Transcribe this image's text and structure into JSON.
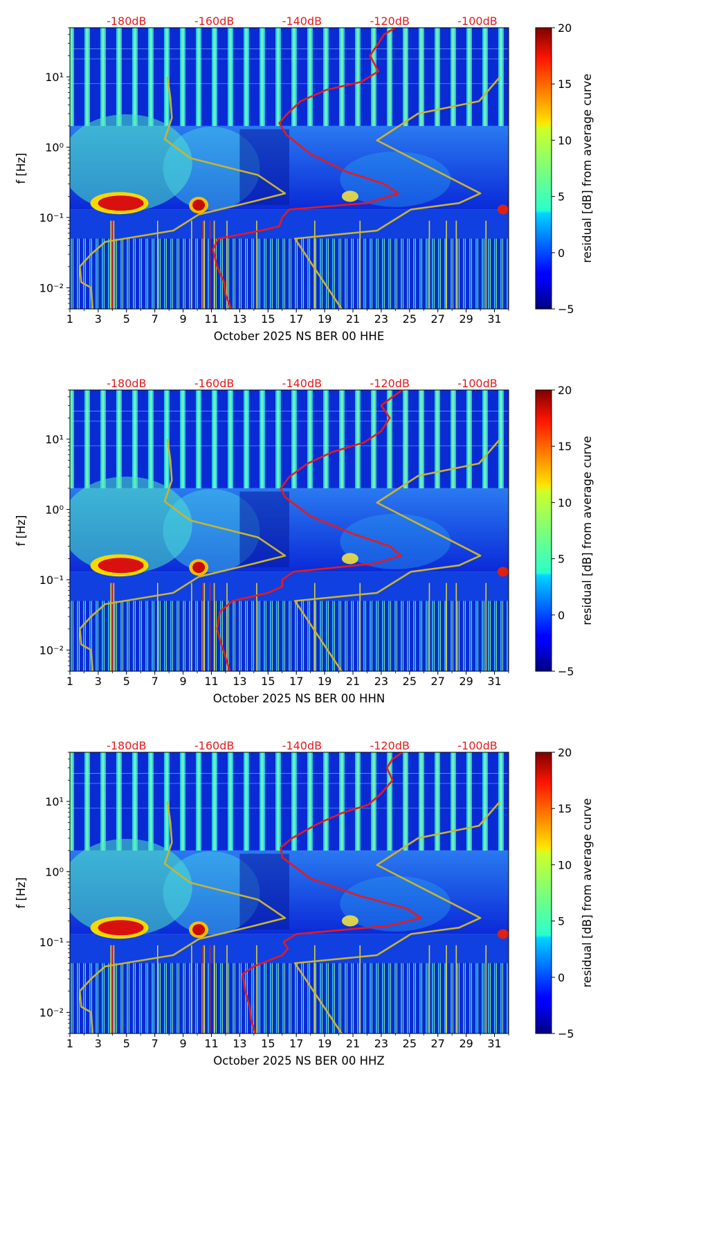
{
  "chart_data": [
    {
      "type": "heatmap",
      "title": "October 2025 NS BER 00 HHE",
      "xlabel": "October 2025 NS BER 00 HHE",
      "ylabel": "f [Hz]",
      "x_ticks": [
        1,
        3,
        5,
        7,
        9,
        11,
        13,
        15,
        17,
        19,
        21,
        23,
        25,
        27,
        29,
        31
      ],
      "x_range": [
        1,
        32
      ],
      "y_scale": "log",
      "y_range": [
        0.005,
        50
      ],
      "y_tick_labels": [
        "10⁻²",
        "10⁻¹",
        "10⁰",
        "10¹"
      ],
      "y_ticks": [
        0.01,
        0.1,
        1,
        10
      ],
      "db_scale": {
        "labels": [
          "-180dB",
          "-160dB",
          "-140dB",
          "-120dB",
          "-100dB"
        ],
        "positions": [
          5,
          11.2,
          17.4,
          23.6,
          29.8
        ]
      },
      "colorbar": {
        "label": "residual [dB] from average curve",
        "range": [
          -5,
          20
        ],
        "ticks": [
          -5,
          0,
          5,
          10,
          15,
          20
        ],
        "tick_labels": [
          "−5",
          "0",
          "5",
          "10",
          "15",
          "20"
        ]
      },
      "series": [
        {
          "name": "noise model (low/high)",
          "color": "#c8b434",
          "points": [
            [
              2.6,
              0.005
            ],
            [
              2.5,
              0.01
            ],
            [
              1.8,
              0.012
            ],
            [
              1.7,
              0.02
            ],
            [
              2.5,
              0.03
            ],
            [
              3.5,
              0.045
            ],
            [
              8.3,
              0.065
            ],
            [
              10.1,
              0.11
            ],
            [
              14.0,
              0.17
            ],
            [
              16.2,
              0.22
            ],
            [
              14.3,
              0.4
            ],
            [
              9.5,
              0.7
            ],
            [
              7.7,
              1.3
            ],
            [
              8.2,
              2.6
            ],
            [
              8.1,
              5.0
            ],
            [
              7.9,
              10.0
            ]
          ]
        },
        {
          "name": "noise model (high)",
          "color": "#c8b434",
          "points": [
            [
              20.2,
              0.005
            ],
            [
              16.9,
              0.05
            ],
            [
              22.7,
              0.065
            ],
            [
              25.1,
              0.13
            ],
            [
              28.5,
              0.16
            ],
            [
              30.0,
              0.22
            ],
            [
              22.7,
              1.25
            ],
            [
              25.6,
              3.0
            ],
            [
              29.9,
              4.5
            ],
            [
              31.4,
              10.0
            ]
          ]
        },
        {
          "name": "average PSD",
          "color": "#e8191c",
          "points": [
            [
              12.4,
              0.005
            ],
            [
              12.0,
              0.008
            ],
            [
              11.9,
              0.012
            ],
            [
              11.4,
              0.02
            ],
            [
              11.1,
              0.035
            ],
            [
              11.5,
              0.05
            ],
            [
              14.5,
              0.065
            ],
            [
              15.8,
              0.075
            ],
            [
              16.0,
              0.1
            ],
            [
              16.5,
              0.13
            ],
            [
              22.0,
              0.16
            ],
            [
              24.2,
              0.22
            ],
            [
              23.2,
              0.3
            ],
            [
              20.5,
              0.45
            ],
            [
              18.0,
              0.8
            ],
            [
              16.3,
              1.5
            ],
            [
              15.8,
              2.2
            ],
            [
              16.3,
              2.9
            ],
            [
              17.3,
              4.5
            ],
            [
              19.1,
              6.5
            ],
            [
              21.6,
              8.5
            ],
            [
              22.8,
              12.0
            ],
            [
              22.2,
              20.0
            ],
            [
              22.8,
              30.0
            ],
            [
              23.2,
              40.0
            ],
            [
              24.0,
              50.0
            ]
          ]
        }
      ]
    },
    {
      "type": "heatmap",
      "title": "October 2025 NS BER 00 HHN",
      "xlabel": "October 2025 NS BER 00 HHN",
      "ylabel": "f [Hz]",
      "x_ticks": [
        1,
        3,
        5,
        7,
        9,
        11,
        13,
        15,
        17,
        19,
        21,
        23,
        25,
        27,
        29,
        31
      ],
      "x_range": [
        1,
        32
      ],
      "y_scale": "log",
      "y_range": [
        0.005,
        50
      ],
      "y_tick_labels": [
        "10⁻²",
        "10⁻¹",
        "10⁰",
        "10¹"
      ],
      "y_ticks": [
        0.01,
        0.1,
        1,
        10
      ],
      "db_scale": {
        "labels": [
          "-180dB",
          "-160dB",
          "-140dB",
          "-120dB",
          "-100dB"
        ],
        "positions": [
          5,
          11.2,
          17.4,
          23.6,
          29.8
        ]
      },
      "colorbar": {
        "label": "residual [dB] from average curve",
        "range": [
          -5,
          20
        ],
        "ticks": [
          -5,
          0,
          5,
          10,
          15,
          20
        ],
        "tick_labels": [
          "−5",
          "0",
          "5",
          "10",
          "15",
          "20"
        ]
      },
      "series": [
        {
          "name": "noise model (low/high)",
          "color": "#c8b434",
          "points": [
            [
              2.6,
              0.005
            ],
            [
              2.5,
              0.01
            ],
            [
              1.8,
              0.012
            ],
            [
              1.7,
              0.02
            ],
            [
              2.5,
              0.03
            ],
            [
              3.5,
              0.045
            ],
            [
              8.3,
              0.065
            ],
            [
              10.1,
              0.11
            ],
            [
              14.0,
              0.17
            ],
            [
              16.2,
              0.22
            ],
            [
              14.3,
              0.4
            ],
            [
              9.5,
              0.7
            ],
            [
              7.7,
              1.3
            ],
            [
              8.2,
              2.6
            ],
            [
              8.1,
              5.0
            ],
            [
              7.9,
              10.0
            ]
          ]
        },
        {
          "name": "noise model (high)",
          "color": "#c8b434",
          "points": [
            [
              20.2,
              0.005
            ],
            [
              16.9,
              0.05
            ],
            [
              22.7,
              0.065
            ],
            [
              25.1,
              0.13
            ],
            [
              28.5,
              0.16
            ],
            [
              30.0,
              0.22
            ],
            [
              22.7,
              1.25
            ],
            [
              25.6,
              3.0
            ],
            [
              29.9,
              4.5
            ],
            [
              31.4,
              10.0
            ]
          ]
        },
        {
          "name": "average PSD",
          "color": "#e8191c",
          "points": [
            [
              12.3,
              0.005
            ],
            [
              12.0,
              0.008
            ],
            [
              11.7,
              0.012
            ],
            [
              11.4,
              0.02
            ],
            [
              11.6,
              0.035
            ],
            [
              12.5,
              0.05
            ],
            [
              15.0,
              0.065
            ],
            [
              16.0,
              0.08
            ],
            [
              16.0,
              0.1
            ],
            [
              16.8,
              0.13
            ],
            [
              22.5,
              0.17
            ],
            [
              24.4,
              0.22
            ],
            [
              23.6,
              0.3
            ],
            [
              21.0,
              0.45
            ],
            [
              18.0,
              0.8
            ],
            [
              16.2,
              1.5
            ],
            [
              15.9,
              2.0
            ],
            [
              16.5,
              2.9
            ],
            [
              17.8,
              4.5
            ],
            [
              19.5,
              6.5
            ],
            [
              21.8,
              9.0
            ],
            [
              23.0,
              13.0
            ],
            [
              23.6,
              20.0
            ],
            [
              23.0,
              30.0
            ],
            [
              23.8,
              40.0
            ],
            [
              24.5,
              50.0
            ]
          ]
        }
      ]
    },
    {
      "type": "heatmap",
      "title": "October 2025 NS BER 00 HHZ",
      "xlabel": "October 2025 NS BER 00 HHZ",
      "ylabel": "f [Hz]",
      "x_ticks": [
        1,
        3,
        5,
        7,
        9,
        11,
        13,
        15,
        17,
        19,
        21,
        23,
        25,
        27,
        29,
        31
      ],
      "x_range": [
        1,
        32
      ],
      "y_scale": "log",
      "y_range": [
        0.005,
        50
      ],
      "y_tick_labels": [
        "10⁻²",
        "10⁻¹",
        "10⁰",
        "10¹"
      ],
      "y_ticks": [
        0.01,
        0.1,
        1,
        10
      ],
      "db_scale": {
        "labels": [
          "-180dB",
          "-160dB",
          "-140dB",
          "-120dB",
          "-100dB"
        ],
        "positions": [
          5,
          11.2,
          17.4,
          23.6,
          29.8
        ]
      },
      "colorbar": {
        "label": "residual [dB] from average curve",
        "range": [
          -5,
          20
        ],
        "ticks": [
          -5,
          0,
          5,
          10,
          15,
          20
        ],
        "tick_labels": [
          "−5",
          "0",
          "5",
          "10",
          "15",
          "20"
        ]
      },
      "series": [
        {
          "name": "noise model (low/high)",
          "color": "#c8b434",
          "points": [
            [
              2.6,
              0.005
            ],
            [
              2.5,
              0.01
            ],
            [
              1.8,
              0.012
            ],
            [
              1.7,
              0.02
            ],
            [
              2.5,
              0.03
            ],
            [
              3.5,
              0.045
            ],
            [
              8.3,
              0.065
            ],
            [
              10.1,
              0.11
            ],
            [
              14.0,
              0.17
            ],
            [
              16.2,
              0.22
            ],
            [
              14.3,
              0.4
            ],
            [
              9.5,
              0.7
            ],
            [
              7.7,
              1.3
            ],
            [
              8.2,
              2.6
            ],
            [
              8.1,
              5.0
            ],
            [
              7.9,
              10.0
            ]
          ]
        },
        {
          "name": "noise model (high)",
          "color": "#c8b434",
          "points": [
            [
              20.2,
              0.005
            ],
            [
              16.9,
              0.05
            ],
            [
              22.7,
              0.065
            ],
            [
              25.1,
              0.13
            ],
            [
              28.5,
              0.16
            ],
            [
              30.0,
              0.22
            ],
            [
              22.7,
              1.25
            ],
            [
              25.6,
              3.0
            ],
            [
              29.9,
              4.5
            ],
            [
              31.4,
              10.0
            ]
          ]
        },
        {
          "name": "average PSD",
          "color": "#e8191c",
          "points": [
            [
              14.1,
              0.005
            ],
            [
              13.8,
              0.008
            ],
            [
              13.7,
              0.012
            ],
            [
              13.4,
              0.02
            ],
            [
              13.2,
              0.035
            ],
            [
              14.0,
              0.045
            ],
            [
              16.0,
              0.065
            ],
            [
              16.4,
              0.08
            ],
            [
              16.1,
              0.1
            ],
            [
              17.0,
              0.13
            ],
            [
              23.5,
              0.17
            ],
            [
              25.8,
              0.22
            ],
            [
              24.8,
              0.3
            ],
            [
              21.5,
              0.45
            ],
            [
              18.0,
              0.8
            ],
            [
              16.0,
              1.6
            ],
            [
              15.9,
              2.2
            ],
            [
              16.7,
              3.0
            ],
            [
              18.5,
              4.8
            ],
            [
              20.2,
              6.8
            ],
            [
              22.1,
              9.0
            ],
            [
              23.0,
              13.0
            ],
            [
              23.8,
              20.0
            ],
            [
              23.4,
              30.0
            ],
            [
              23.8,
              40.0
            ],
            [
              24.5,
              50.0
            ]
          ]
        }
      ]
    }
  ]
}
